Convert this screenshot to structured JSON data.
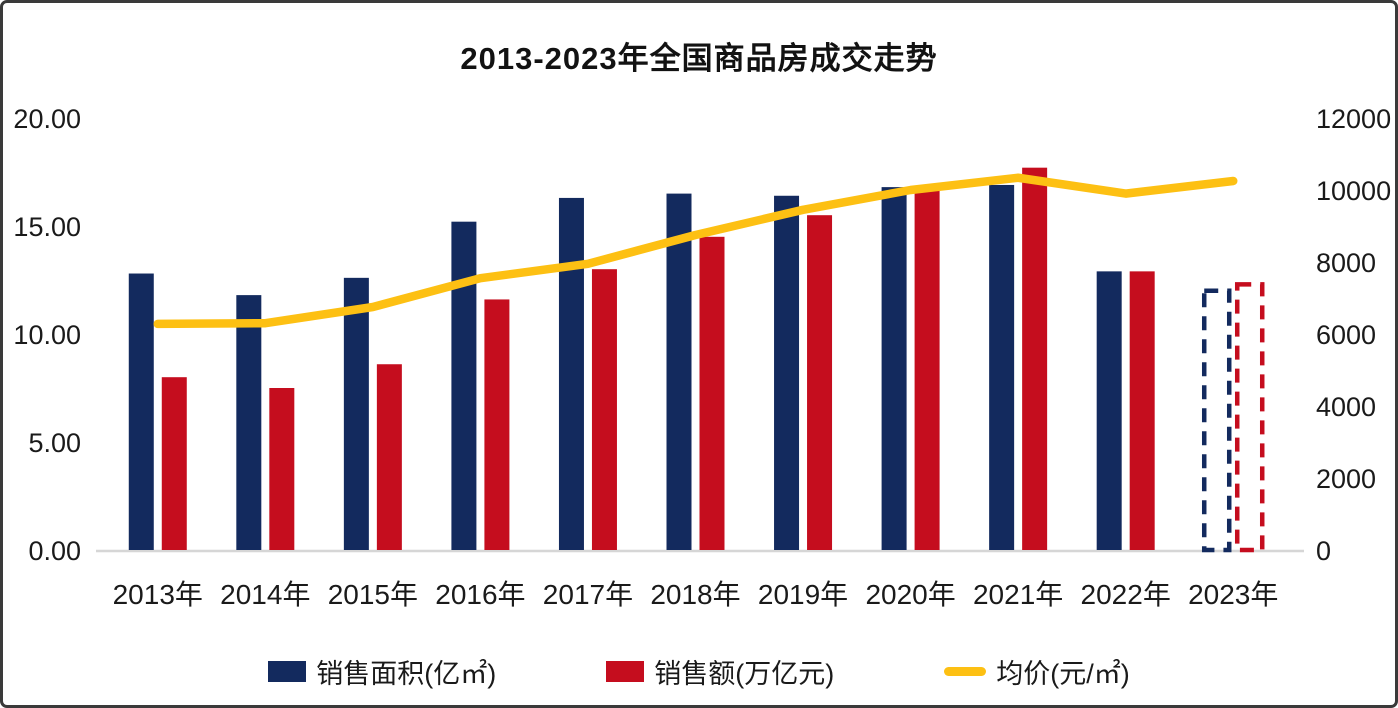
{
  "page": {
    "background": "#ffffff",
    "border_color": "#3a3a3a",
    "text_color": "#1a1a1a"
  },
  "chart_data": {
    "type": "bar",
    "subtype": "combo-bar-line-dual-axis",
    "title": "2013-2023年全国商品房成交走势",
    "categories": [
      "2013年",
      "2014年",
      "2015年",
      "2016年",
      "2017年",
      "2018年",
      "2019年",
      "2020年",
      "2021年",
      "2022年",
      "2023年"
    ],
    "series": [
      {
        "name": "销售面积(亿㎡)",
        "type": "bar",
        "axis": "left",
        "color": "#132a5e",
        "values": [
          12.8,
          11.8,
          12.6,
          15.2,
          16.3,
          16.5,
          16.4,
          16.8,
          16.9,
          12.9,
          12.0
        ]
      },
      {
        "name": "销售额(万亿元)",
        "type": "bar",
        "axis": "left",
        "color": "#c50d1e",
        "values": [
          8.0,
          7.5,
          8.6,
          11.6,
          13.0,
          14.5,
          15.5,
          16.7,
          17.7,
          12.9,
          12.3
        ]
      },
      {
        "name": "均价(元/㎡)",
        "type": "line",
        "axis": "right",
        "color": "#fdc013",
        "values": [
          6280,
          6300,
          6750,
          7550,
          7950,
          8750,
          9450,
          10000,
          10340,
          9900,
          10250
        ]
      }
    ],
    "left_axis": {
      "min": 0,
      "max": 20,
      "ticks": [
        "0.00",
        "5.00",
        "10.00",
        "15.00",
        "20.00"
      ],
      "tick_values": [
        0,
        5,
        10,
        15,
        20
      ]
    },
    "right_axis": {
      "min": 0,
      "max": 12000,
      "ticks": [
        "0",
        "2000",
        "4000",
        "6000",
        "8000",
        "10000",
        "12000"
      ],
      "tick_values": [
        0,
        2000,
        4000,
        6000,
        8000,
        10000,
        12000
      ]
    },
    "forecast_category": "2023年",
    "forecast_style": "dashed-outline-bars",
    "legend_position": "bottom",
    "grid": "off",
    "baseline_color": "#d6d6d6"
  }
}
